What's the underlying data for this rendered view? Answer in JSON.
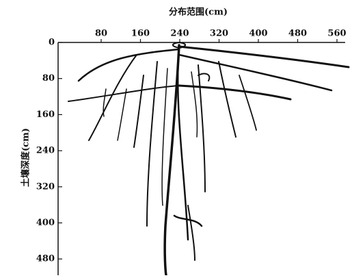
{
  "x_axis": {
    "label": "分布范围(cm)",
    "ticks": [
      80,
      160,
      240,
      320,
      400,
      480,
      560
    ]
  },
  "y_axis": {
    "label": "土壤深度(cm)",
    "ticks": [
      0,
      80,
      160,
      240,
      320,
      400,
      480
    ]
  }
}
